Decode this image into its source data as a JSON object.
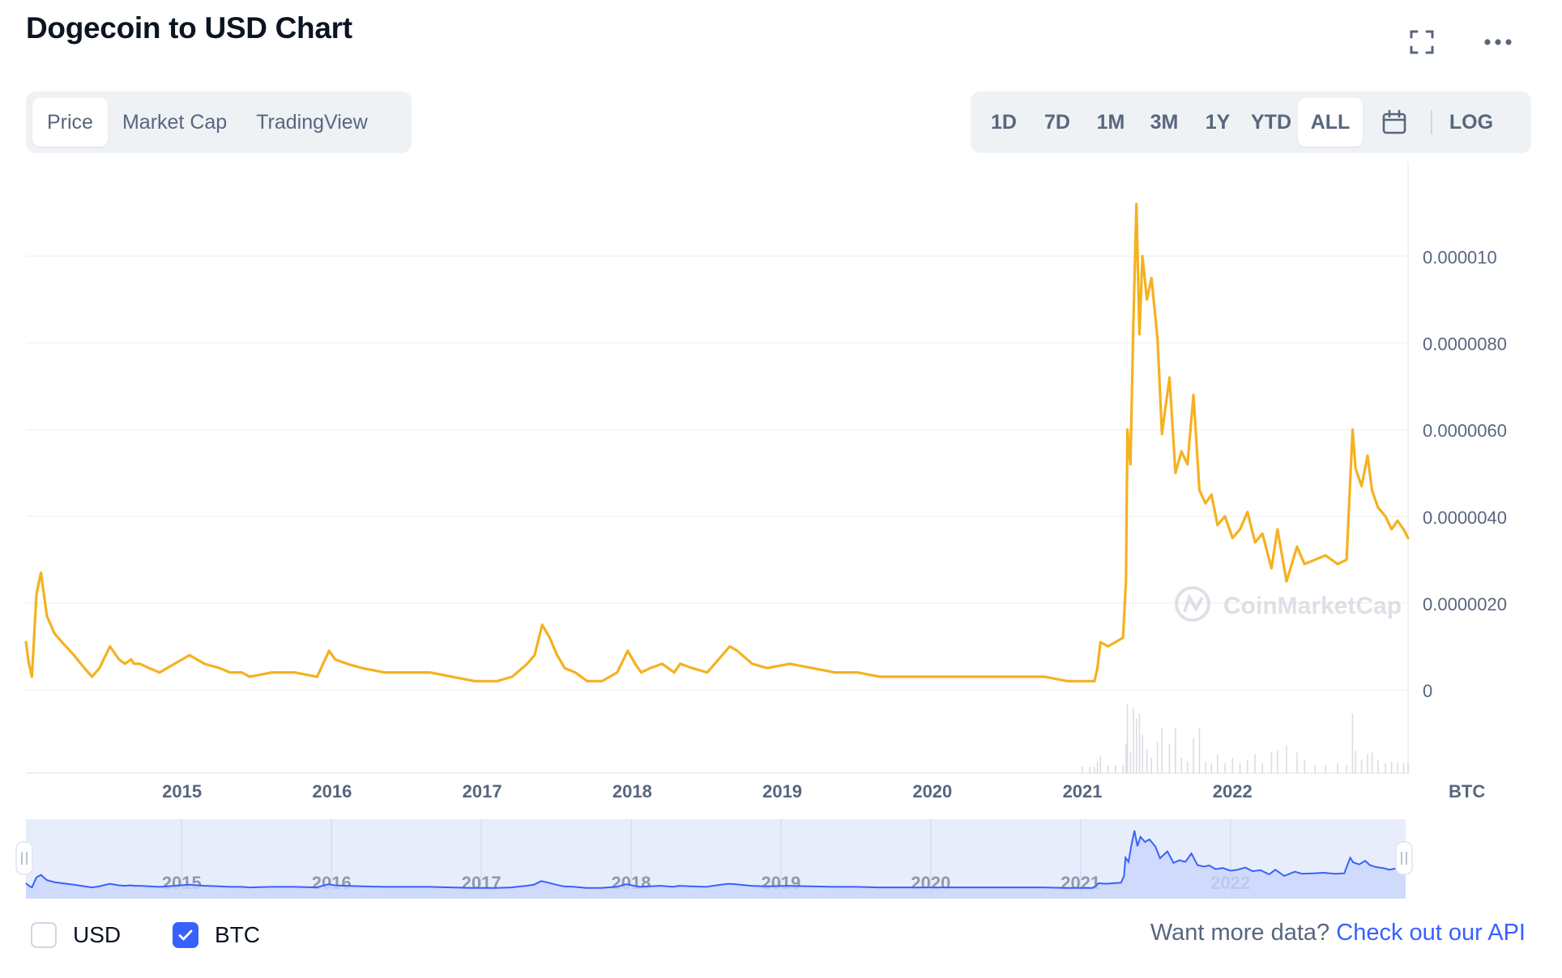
{
  "header": {
    "title": "Dogecoin to USD Chart"
  },
  "type_tabs": [
    "Price",
    "Market Cap",
    "TradingView"
  ],
  "active_type": "Price",
  "range_tabs": [
    "1D",
    "7D",
    "1M",
    "3M",
    "1Y",
    "YTD",
    "ALL"
  ],
  "active_range": "ALL",
  "log_label": "LOG",
  "watermark": "CoinMarketCap",
  "footer": {
    "usd_label": "USD",
    "btc_label": "BTC",
    "usd_checked": false,
    "btc_checked": true,
    "api_prompt": "Want more data?",
    "api_link": "Check out our API"
  },
  "colors": {
    "price_line": "#F5B11F",
    "navigator_line": "#3861FB",
    "accent": "#3861FB"
  },
  "chart_data": {
    "type": "line",
    "title": "Dogecoin to USD Chart",
    "unit_label": "BTC",
    "y_tick_labels": [
      "0",
      "0.0000020",
      "0.0000040",
      "0.0000060",
      "0.0000080",
      "0.000010"
    ],
    "y_ticks": [
      0,
      2e-06,
      4e-06,
      6e-06,
      8e-06,
      1e-05
    ],
    "ylim": [
      0,
      1.18e-05
    ],
    "x_tick_labels": [
      "2015",
      "2016",
      "2017",
      "2018",
      "2019",
      "2020",
      "2021",
      "2022"
    ],
    "x_ticks": [
      2015.0,
      2016.0,
      2017.0,
      2018.0,
      2019.0,
      2020.0,
      2021.0,
      2022.0
    ],
    "xlim": [
      2013.96,
      2023.17
    ],
    "grid": true,
    "series": [
      {
        "name": "BTC",
        "x": [
          2013.96,
          2013.98,
          2014.0,
          2014.03,
          2014.06,
          2014.1,
          2014.15,
          2014.2,
          2014.28,
          2014.35,
          2014.4,
          2014.45,
          2014.52,
          2014.58,
          2014.62,
          2014.66,
          2014.68,
          2014.72,
          2014.78,
          2014.85,
          2014.95,
          2015.05,
          2015.15,
          2015.25,
          2015.32,
          2015.4,
          2015.45,
          2015.6,
          2015.75,
          2015.9,
          2015.98,
          2016.02,
          2016.1,
          2016.2,
          2016.35,
          2016.5,
          2016.65,
          2016.8,
          2016.95,
          2017.1,
          2017.2,
          2017.3,
          2017.35,
          2017.4,
          2017.45,
          2017.5,
          2017.55,
          2017.62,
          2017.7,
          2017.8,
          2017.9,
          2017.97,
          2018.02,
          2018.06,
          2018.12,
          2018.2,
          2018.28,
          2018.32,
          2018.4,
          2018.5,
          2018.6,
          2018.65,
          2018.7,
          2018.8,
          2018.9,
          2019.05,
          2019.2,
          2019.35,
          2019.5,
          2019.65,
          2019.8,
          2019.95,
          2020.1,
          2020.2,
          2020.3,
          2020.45,
          2020.6,
          2020.75,
          2020.9,
          2021.0,
          2021.05,
          2021.08,
          2021.1,
          2021.12,
          2021.17,
          2021.22,
          2021.27,
          2021.29,
          2021.3,
          2021.32,
          2021.34,
          2021.36,
          2021.38,
          2021.4,
          2021.43,
          2021.46,
          2021.5,
          2021.53,
          2021.58,
          2021.62,
          2021.66,
          2021.7,
          2021.74,
          2021.78,
          2021.82,
          2021.86,
          2021.9,
          2021.95,
          2022.0,
          2022.05,
          2022.1,
          2022.15,
          2022.2,
          2022.26,
          2022.3,
          2022.36,
          2022.43,
          2022.48,
          2022.55,
          2022.62,
          2022.7,
          2022.76,
          2022.8,
          2022.82,
          2022.86,
          2022.9,
          2022.93,
          2022.97,
          2023.02,
          2023.06,
          2023.1,
          2023.14,
          2023.17
        ],
        "y": [
          1.1e-06,
          6e-07,
          3e-07,
          2.2e-06,
          2.7e-06,
          1.7e-06,
          1.3e-06,
          1.1e-06,
          8e-07,
          5e-07,
          3e-07,
          5e-07,
          1e-06,
          7e-07,
          6e-07,
          7e-07,
          6e-07,
          6e-07,
          5e-07,
          4e-07,
          6e-07,
          8e-07,
          6e-07,
          5e-07,
          4e-07,
          4e-07,
          3e-07,
          4e-07,
          4e-07,
          3e-07,
          9e-07,
          7e-07,
          6e-07,
          5e-07,
          4e-07,
          4e-07,
          4e-07,
          3e-07,
          2e-07,
          2e-07,
          3e-07,
          6e-07,
          8e-07,
          1.5e-06,
          1.2e-06,
          8e-07,
          5e-07,
          4e-07,
          2e-07,
          2e-07,
          4e-07,
          9e-07,
          6e-07,
          4e-07,
          5e-07,
          6e-07,
          4e-07,
          6e-07,
          5e-07,
          4e-07,
          8e-07,
          1e-06,
          9e-07,
          6e-07,
          5e-07,
          6e-07,
          5e-07,
          4e-07,
          4e-07,
          3e-07,
          3e-07,
          3e-07,
          3e-07,
          3e-07,
          3e-07,
          3e-07,
          3e-07,
          3e-07,
          2e-07,
          2e-07,
          2e-07,
          2e-07,
          5e-07,
          1.1e-06,
          1e-06,
          1.1e-06,
          1.2e-06,
          2.5e-06,
          6e-06,
          5.2e-06,
          8.5e-06,
          1.12e-05,
          8.2e-06,
          1e-05,
          9e-06,
          9.5e-06,
          8.1e-06,
          5.9e-06,
          7.2e-06,
          5e-06,
          5.5e-06,
          5.2e-06,
          6.8e-06,
          4.6e-06,
          4.3e-06,
          4.5e-06,
          3.8e-06,
          4e-06,
          3.5e-06,
          3.7e-06,
          4.1e-06,
          3.4e-06,
          3.6e-06,
          2.8e-06,
          3.7e-06,
          2.5e-06,
          3.3e-06,
          2.9e-06,
          3e-06,
          3.1e-06,
          2.9e-06,
          3e-06,
          6e-06,
          5.1e-06,
          4.7e-06,
          5.4e-06,
          4.6e-06,
          4.2e-06,
          4e-06,
          3.7e-06,
          3.9e-06,
          3.7e-06,
          3.5e-06
        ]
      }
    ],
    "navigator": {
      "x_tick_labels": [
        "2015",
        "2016",
        "2017",
        "2018",
        "2019",
        "2020",
        "2021",
        "2022"
      ]
    }
  }
}
